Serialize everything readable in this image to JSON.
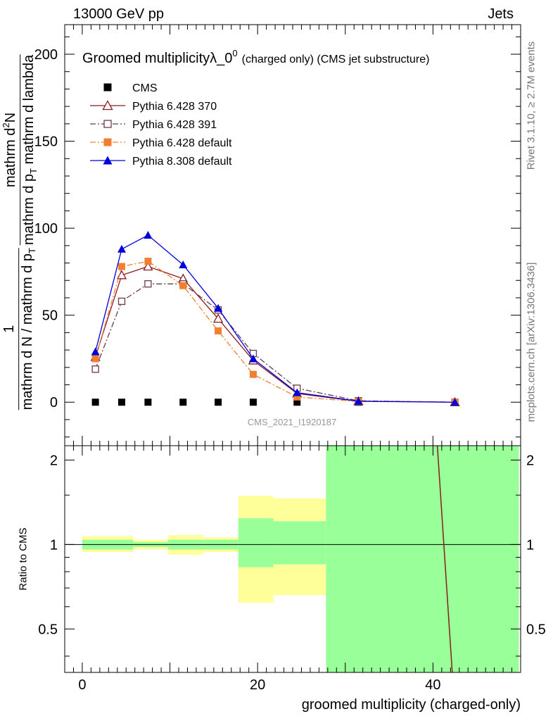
{
  "header": {
    "left": "13000 GeV pp",
    "right": "Jets"
  },
  "side_labels": {
    "rivet": "Rivet 3.1.10, ≥ 2.7M events",
    "mcplots": "mcplots.cern.ch [arXiv:1306.3436]"
  },
  "chart_data": {
    "type": "line",
    "title": "Groomed multiplicityλ_0",
    "title_superscript": "0",
    "title_suffix": "(charged only) (CMS jet substructure)",
    "watermark": "CMS_2021_I1920187",
    "xlabel": "groomed multiplicity (charged-only)",
    "ylabel_main": {
      "numerator_num": "1",
      "numerator_den": "mathrm d N / mathrm d p",
      "numerator_den_sub": "T",
      "denominator_num": "mathrm d",
      "denominator_num_sup": "2",
      "denominator_num_end": "N",
      "denominator_den": "mathrm d p",
      "denominator_den_sub": "T",
      "denominator_den_end": " mathrm d lambda"
    },
    "ylabel_ratio": "Ratio to CMS",
    "xlim": [
      -2,
      50
    ],
    "ylim": [
      -25,
      217
    ],
    "ratio_ylim": [
      0.35,
      2.25
    ],
    "x_ticks": [
      0,
      20,
      40
    ],
    "y_ticks": [
      0,
      50,
      100,
      150,
      200
    ],
    "ratio_ticks": [
      0.5,
      1,
      2
    ],
    "legend_position": "top-left",
    "series": [
      {
        "name": "CMS",
        "color": "#000000",
        "marker": "filled-square",
        "line": "none",
        "x": [
          1.5,
          4.5,
          7.5,
          11.5,
          15.5,
          19.5,
          24.5,
          31.5,
          42.5
        ],
        "y": [
          0,
          0,
          0,
          0,
          0,
          0,
          0,
          0,
          0
        ]
      },
      {
        "name": "Pythia 6.428 370",
        "color": "#8b1a1a",
        "marker": "open-triangle",
        "line": "solid",
        "x": [
          1.5,
          4.5,
          7.5,
          11.5,
          15.5,
          19.5,
          24.5,
          31.5,
          42.5
        ],
        "y": [
          26,
          73,
          78,
          71,
          48,
          24,
          5,
          0.5,
          0
        ]
      },
      {
        "name": "Pythia 6.428 391",
        "color": "#6b3a4a",
        "marker": "open-square",
        "line": "dash-dot",
        "x": [
          1.5,
          4.5,
          7.5,
          11.5,
          15.5,
          19.5,
          24.5,
          31.5,
          42.5
        ],
        "y": [
          19,
          58,
          68,
          68,
          53,
          28,
          8,
          0.8,
          0
        ]
      },
      {
        "name": "Pythia 6.428 default",
        "color": "#f08030",
        "marker": "filled-square",
        "line": "dash-dot",
        "x": [
          1.5,
          4.5,
          7.5,
          11.5,
          15.5,
          19.5,
          24.5,
          31.5,
          42.5
        ],
        "y": [
          25,
          78,
          81,
          67,
          41,
          16,
          3,
          0.4,
          0
        ]
      },
      {
        "name": "Pythia 8.308 default",
        "color": "#0000dd",
        "marker": "filled-triangle",
        "line": "solid",
        "x": [
          1.5,
          4.5,
          7.5,
          11.5,
          15.5,
          19.5,
          24.5,
          31.5,
          42.5
        ],
        "y": [
          29,
          88,
          96,
          79,
          54,
          25,
          5.5,
          0.6,
          0
        ]
      }
    ],
    "ratio_bands": [
      {
        "x0": 0,
        "x1": 5.8,
        "yellow": [
          0.94,
          1.07
        ],
        "green": [
          0.96,
          1.04
        ]
      },
      {
        "x0": 5.8,
        "x1": 9.8,
        "yellow": [
          0.96,
          1.04
        ],
        "green": [
          0.98,
          1.02
        ]
      },
      {
        "x0": 9.8,
        "x1": 13.8,
        "yellow": [
          0.92,
          1.08
        ],
        "green": [
          0.96,
          1.04
        ]
      },
      {
        "x0": 13.8,
        "x1": 17.8,
        "yellow": [
          0.94,
          1.06
        ],
        "green": [
          0.96,
          1.04
        ]
      },
      {
        "x0": 17.8,
        "x1": 21.8,
        "yellow": [
          0.62,
          1.49
        ],
        "green": [
          0.83,
          1.24
        ]
      },
      {
        "x0": 21.8,
        "x1": 27.8,
        "yellow": [
          0.66,
          1.46
        ],
        "green": [
          0.85,
          1.21
        ]
      },
      {
        "x0": 27.8,
        "x1": 49.8,
        "yellow": [
          0.35,
          2.25
        ],
        "green": [
          0.35,
          2.25
        ]
      }
    ],
    "ratio_line": {
      "color": "#8b1a1a",
      "x": [
        40.5,
        42.2
      ],
      "y": [
        2.25,
        0.35
      ]
    }
  }
}
